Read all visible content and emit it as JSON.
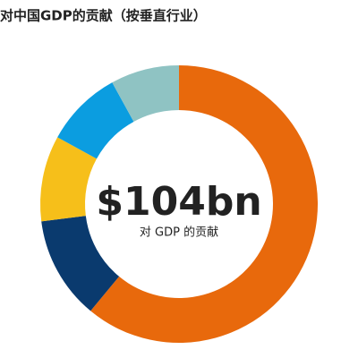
{
  "chart_data": {
    "type": "donut",
    "title": "对中国GDP的贡献（按垂直行业）",
    "values": [
      61,
      12,
      10,
      9,
      8
    ],
    "colors": [
      "#e8690c",
      "#0a3a6e",
      "#f6bf1a",
      "#0b9de0",
      "#8fc3c3"
    ],
    "center_value": "$104bn",
    "center_label": "对 GDP 的贡献"
  }
}
